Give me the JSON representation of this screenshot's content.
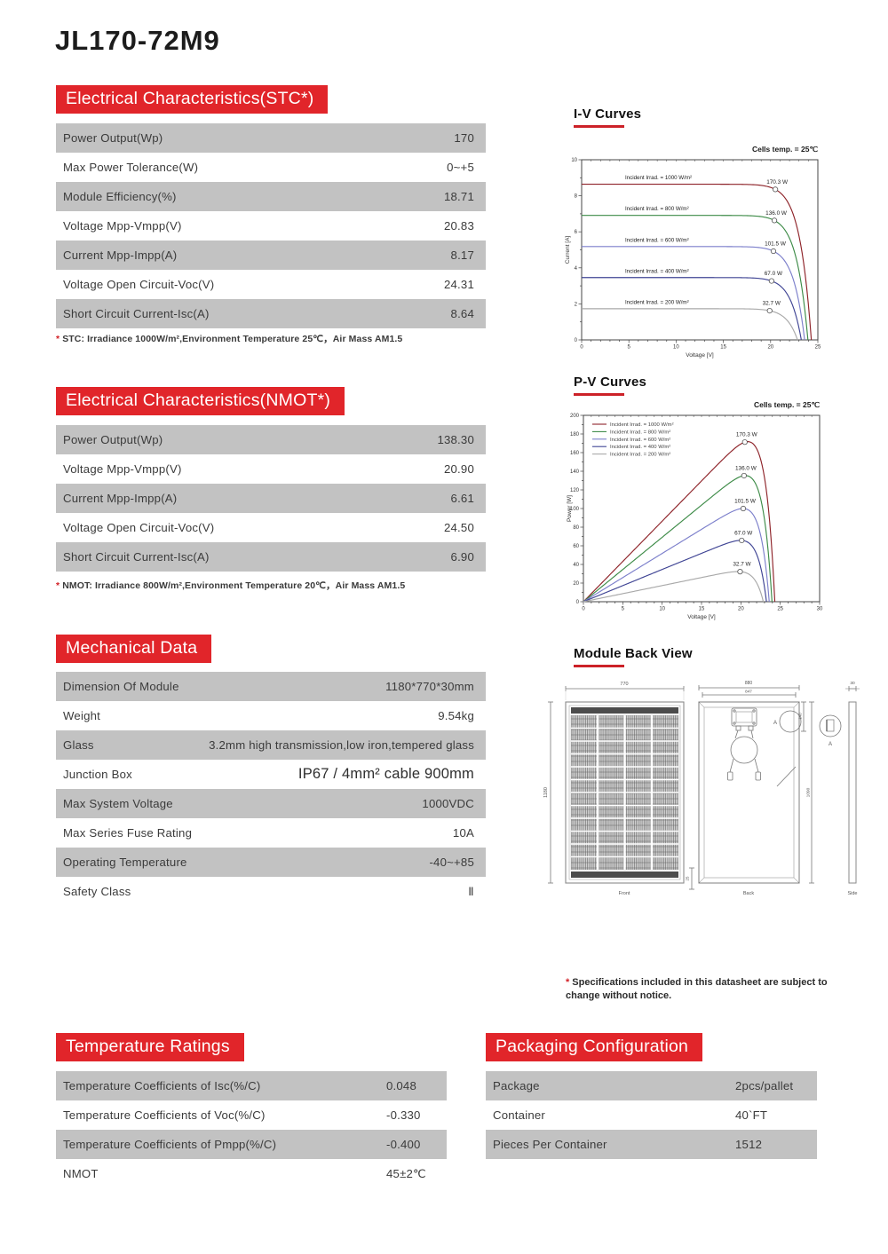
{
  "page_title": "JL170-72M9",
  "sections": {
    "stc": {
      "title": "Electrical Characteristics(STC*)",
      "rows": [
        {
          "label": "Power Output(Wp)",
          "value": "170"
        },
        {
          "label": "Max Power Tolerance(W)",
          "value": "0~+5"
        },
        {
          "label": "Module Efficiency(%)",
          "value": "18.71"
        },
        {
          "label": "Voltage Mpp-Vmpp(V)",
          "value": "20.83"
        },
        {
          "label": "Current Mpp-Impp(A)",
          "value": "8.17"
        },
        {
          "label": "Voltage Open Circuit-Voc(V)",
          "value": "24.31"
        },
        {
          "label": "Short Circuit Current-Isc(A)",
          "value": "8.64"
        }
      ],
      "note": "STC: Irradiance 1000W/m²,Environment Temperature 25℃，Air Mass AM1.5"
    },
    "nmot": {
      "title": "Electrical Characteristics(NMOT*)",
      "rows": [
        {
          "label": "Power Output(Wp)",
          "value": "138.30"
        },
        {
          "label": "Voltage Mpp-Vmpp(V)",
          "value": "20.90"
        },
        {
          "label": "Current Mpp-Impp(A)",
          "value": "6.61"
        },
        {
          "label": "Voltage Open Circuit-Voc(V)",
          "value": "24.50"
        },
        {
          "label": "Short Circuit Current-Isc(A)",
          "value": "6.90"
        }
      ],
      "note": "NMOT: Irradiance 800W/m²,Environment Temperature 20℃，Air Mass AM1.5"
    },
    "mechanical": {
      "title": "Mechanical Data",
      "rows": [
        {
          "label": "Dimension Of Module",
          "value": "1180*770*30mm"
        },
        {
          "label": "Weight",
          "value": "9.54kg"
        },
        {
          "label": "Glass",
          "value": "3.2mm high transmission,low iron,tempered glass"
        },
        {
          "label": "Junction Box",
          "value": "IP67 / 4mm² cable 900mm",
          "big": true
        },
        {
          "label": "Max System Voltage",
          "value": "1000VDC"
        },
        {
          "label": "Max Series Fuse Rating",
          "value": "10A"
        },
        {
          "label": "Operating Temperature",
          "value": "-40~+85"
        },
        {
          "label": "Safety Class",
          "value": "Ⅱ"
        }
      ]
    },
    "temperature": {
      "title": "Temperature Ratings",
      "rows": [
        {
          "label": "Temperature Coefficients of Isc(%/C)",
          "value": "0.048"
        },
        {
          "label": "Temperature Coefficients of Voc(%/C)",
          "value": "-0.330"
        },
        {
          "label": "Temperature Coefficients of Pmpp(%/C)",
          "value": "-0.400"
        },
        {
          "label": "NMOT",
          "value": "45±2℃"
        }
      ]
    },
    "packaging": {
      "title": "Packaging Configuration",
      "rows": [
        {
          "label": "Package",
          "value": "2pcs/pallet"
        },
        {
          "label": "Container",
          "value": "40`FT"
        },
        {
          "label": "Pieces Per Container",
          "value": "1512"
        }
      ]
    }
  },
  "chart_data": [
    {
      "type": "line",
      "variant": "iv",
      "title": "I-V Curves",
      "note": "Cells temp. = 25℃",
      "xlabel": "Voltage [V]",
      "ylabel": "Current [A]",
      "xlim": [
        0,
        25
      ],
      "ylim": [
        0,
        10
      ],
      "xtick": 5,
      "xminor": 1,
      "ytick": 2,
      "yminor": 1,
      "inplot_labels": true,
      "legend": false,
      "grid": false,
      "series": [
        {
          "name": "Incident Irrad. = 1000 W/m²",
          "color": "#8e2329",
          "isc": 8.64,
          "voc": 24.31,
          "vmp": 20.5,
          "power_label": "170.3 W"
        },
        {
          "name": "Incident Irrad. = 800 W/m²",
          "color": "#3d8b47",
          "isc": 6.91,
          "voc": 23.95,
          "vmp": 20.4,
          "power_label": "136.0 W"
        },
        {
          "name": "Incident Irrad. = 600 W/m²",
          "color": "#7c7fcb",
          "isc": 5.18,
          "voc": 23.6,
          "vmp": 20.3,
          "power_label": "101.5 W"
        },
        {
          "name": "Incident Irrad. = 400 W/m²",
          "color": "#3f4494",
          "isc": 3.46,
          "voc": 23.25,
          "vmp": 20.1,
          "power_label": "67.0 W"
        },
        {
          "name": "Incident Irrad. = 200 W/m²",
          "color": "#a9a9a9",
          "isc": 1.73,
          "voc": 22.85,
          "vmp": 19.9,
          "power_label": "32.7 W"
        }
      ]
    },
    {
      "type": "line",
      "variant": "pv",
      "title": "P-V Curves",
      "note": "Cells temp. = 25℃",
      "xlabel": "Voltage [V]",
      "ylabel": "Power [W]",
      "xlim": [
        0,
        30
      ],
      "ylim": [
        0,
        200
      ],
      "xtick": 5,
      "xminor": 1,
      "ytick": 20,
      "yminor": 10,
      "inplot_labels": false,
      "legend": true,
      "grid": false,
      "series": [
        {
          "name": "Incident Irrad. = 1000 W/m²",
          "color": "#8e2329",
          "isc": 8.64,
          "voc": 24.31,
          "vmp": 20.5,
          "power_label": "170.3 W"
        },
        {
          "name": "Incident Irrad. = 800 W/m²",
          "color": "#3d8b47",
          "isc": 6.91,
          "voc": 23.95,
          "vmp": 20.4,
          "power_label": "136.0 W"
        },
        {
          "name": "Incident Irrad. = 600 W/m²",
          "color": "#7c7fcb",
          "isc": 5.18,
          "voc": 23.6,
          "vmp": 20.3,
          "power_label": "101.5 W"
        },
        {
          "name": "Incident Irrad. = 400 W/m²",
          "color": "#3f4494",
          "isc": 3.46,
          "voc": 23.25,
          "vmp": 20.1,
          "power_label": "67.0 W"
        },
        {
          "name": "Incident Irrad. = 200 W/m²",
          "color": "#a9a9a9",
          "isc": 1.73,
          "voc": 22.85,
          "vmp": 19.9,
          "power_label": "32.7 W"
        }
      ]
    }
  ],
  "module_back_view": {
    "title": "Module Back View",
    "labels": {
      "front": "Front",
      "back": "Back",
      "side": "Side",
      "detail_a": "A",
      "detail_a2": "A"
    },
    "dims": {
      "front_w": "770",
      "front_h": "1180",
      "back_w1": "880",
      "back_w2": "847",
      "back_h": "1090",
      "jb_offset": "140",
      "bottom_offset": "25",
      "side_t": "30"
    }
  },
  "spec_note": "Specifications included in this datasheet are subject to change without notice."
}
